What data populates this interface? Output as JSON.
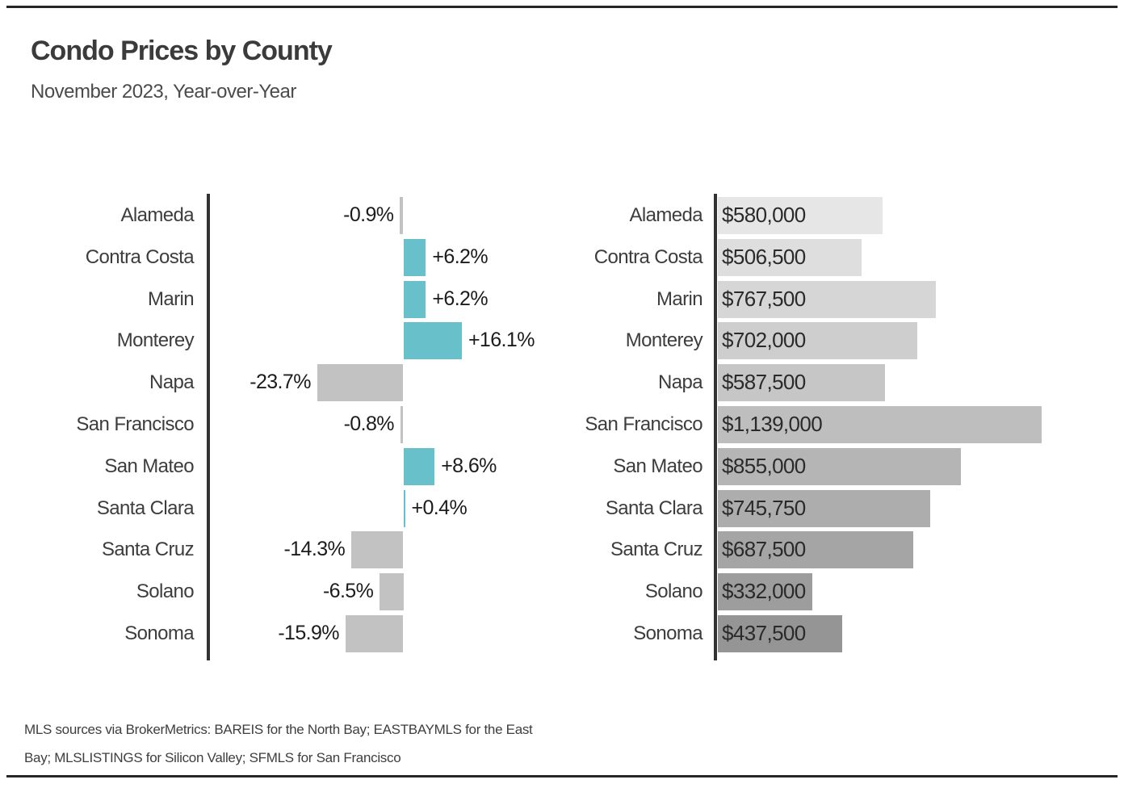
{
  "header": {
    "title": "Condo Prices by County",
    "subtitle": "November 2023, Year-over-Year"
  },
  "footnote": {
    "line1": "MLS sources via BrokerMetrics: BAREIS for the North Bay; EASTBAYMLS for the East",
    "line2": "Bay; MLSLISTINGS for Silicon Valley; SFMLS for San Francisco"
  },
  "colors": {
    "positive_teal": "#68c0cb",
    "negative_gray": "#c2c2c2",
    "axis": "#333333",
    "rule": "#262626",
    "price_bar_ramp": [
      "#e6e6e6",
      "#dedede",
      "#d6d6d6",
      "#cecece",
      "#c6c6c6",
      "#bebebe",
      "#b5b5b5",
      "#adadad",
      "#a5a5a5",
      "#9d9d9d",
      "#959595"
    ]
  },
  "chart_data": [
    {
      "type": "bar",
      "orientation": "horizontal",
      "title": "Year-over-Year % change",
      "categories": [
        "Alameda",
        "Contra Costa",
        "Marin",
        "Monterey",
        "Napa",
        "San Francisco",
        "San Mateo",
        "Santa Clara",
        "Santa Cruz",
        "Solano",
        "Sonoma"
      ],
      "values": [
        -0.9,
        6.2,
        6.2,
        16.1,
        -23.7,
        -0.8,
        8.6,
        0.4,
        -14.3,
        -6.5,
        -15.9
      ],
      "data_labels": [
        "-0.9%",
        "+6.2%",
        "+6.2%",
        "+16.1%",
        "-23.7%",
        "-0.8%",
        "+8.6%",
        "+0.4%",
        "-14.3%",
        "-6.5%",
        "-15.9%"
      ],
      "xlim": [
        -26,
        18
      ],
      "grid": false,
      "legend": "none",
      "positive_color": "#68c0cb",
      "negative_color": "#c2c2c2"
    },
    {
      "type": "bar",
      "orientation": "horizontal",
      "title": "Median condo price",
      "categories": [
        "Alameda",
        "Contra Costa",
        "Marin",
        "Monterey",
        "Napa",
        "San Francisco",
        "San Mateo",
        "Santa Clara",
        "Santa Cruz",
        "Solano",
        "Sonoma"
      ],
      "values": [
        580000,
        506500,
        767500,
        702000,
        587500,
        1139000,
        855000,
        745750,
        687500,
        332000,
        437500
      ],
      "data_labels": [
        "$580,000",
        "$506,500",
        "$767,500",
        "$702,000",
        "$587,500",
        "$1,139,000",
        "$855,000",
        "$745,750",
        "$687,500",
        "$332,000",
        "$437,500"
      ],
      "xlim": [
        0,
        1180000
      ],
      "grid": false,
      "legend": "none",
      "bar_colors": [
        "#e6e6e6",
        "#dedede",
        "#d6d6d6",
        "#cecece",
        "#c6c6c6",
        "#bebebe",
        "#b5b5b5",
        "#adadad",
        "#a5a5a5",
        "#9d9d9d",
        "#959595"
      ]
    }
  ]
}
